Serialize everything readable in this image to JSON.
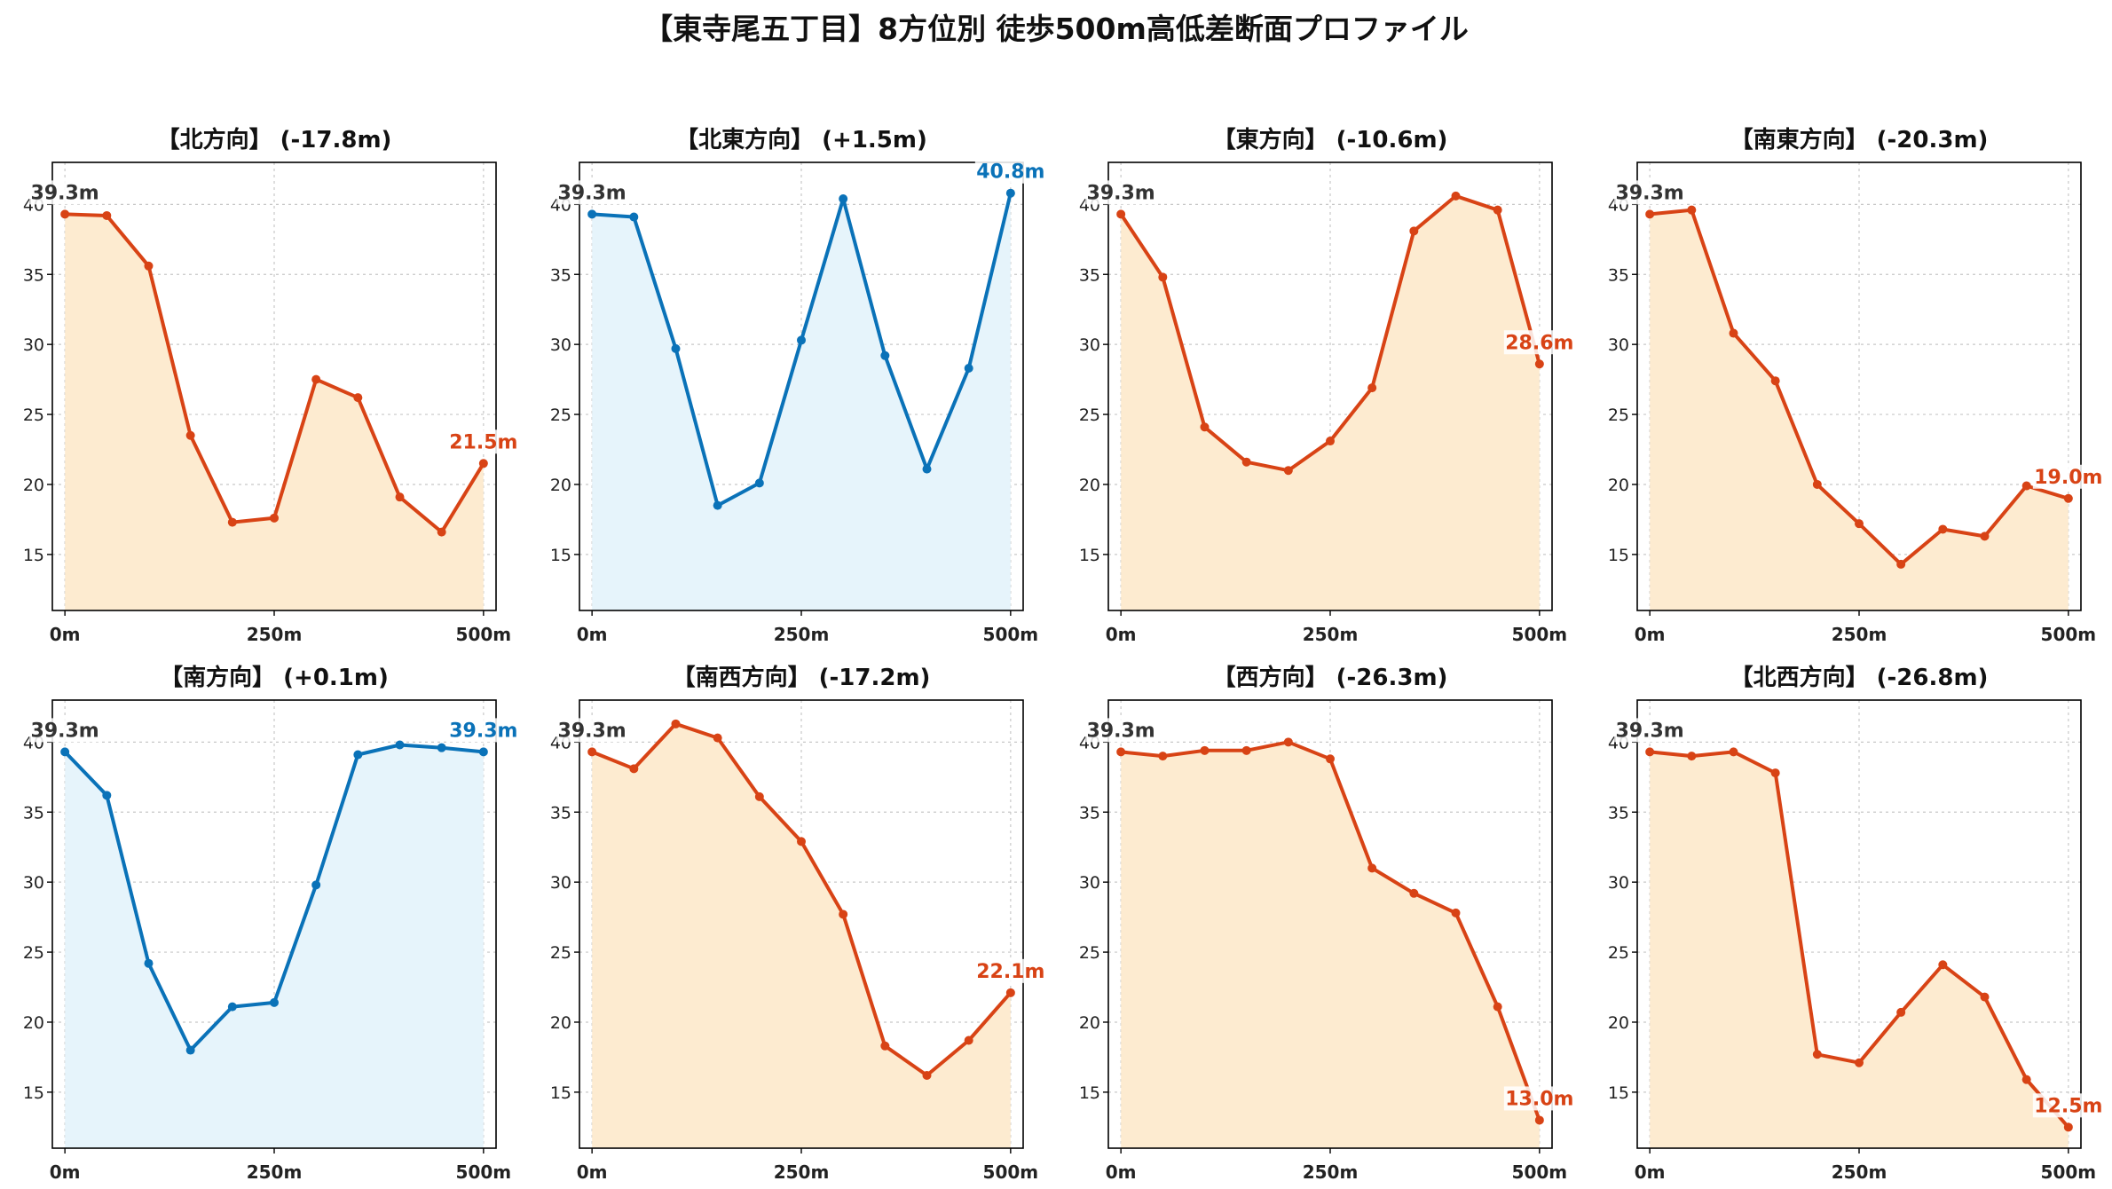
{
  "title": "【東寺尾五丁目】8方位別 徒歩500m高低差断面プロファイル",
  "colors": {
    "down": "#d84315",
    "down_fill": "#fdebd0",
    "up": "#0a72b8",
    "up_fill": "#e6f4fb"
  },
  "chart_data": [
    {
      "type": "area",
      "title": "【北方向】 (-17.8m)",
      "x": [
        0,
        50,
        100,
        150,
        200,
        250,
        300,
        350,
        400,
        450,
        500
      ],
      "values": [
        39.3,
        39.2,
        35.6,
        23.5,
        17.3,
        17.6,
        27.5,
        26.2,
        19.1,
        16.6,
        21.5
      ],
      "start_label": "39.3m",
      "end_label": "21.5m",
      "trend": "down",
      "xticks": [
        "0m",
        "250m",
        "500m"
      ],
      "yticks": [
        15,
        20,
        25,
        30,
        35,
        40
      ],
      "xlim": [
        -15,
        515
      ],
      "ylim": [
        11,
        43
      ],
      "grid": true
    },
    {
      "type": "area",
      "title": "【北東方向】 (+1.5m)",
      "x": [
        0,
        50,
        100,
        150,
        200,
        250,
        300,
        350,
        400,
        450,
        500
      ],
      "values": [
        39.3,
        39.1,
        29.7,
        18.5,
        20.1,
        30.3,
        40.4,
        29.2,
        21.1,
        28.3,
        40.8
      ],
      "start_label": "39.3m",
      "end_label": "40.8m",
      "trend": "up",
      "xticks": [
        "0m",
        "250m",
        "500m"
      ],
      "yticks": [
        15,
        20,
        25,
        30,
        35,
        40
      ],
      "xlim": [
        -15,
        515
      ],
      "ylim": [
        11,
        43
      ],
      "grid": true
    },
    {
      "type": "area",
      "title": "【東方向】 (-10.6m)",
      "x": [
        0,
        50,
        100,
        150,
        200,
        250,
        300,
        350,
        400,
        450,
        500
      ],
      "values": [
        39.3,
        34.8,
        24.1,
        21.6,
        21.0,
        23.1,
        26.9,
        38.1,
        40.6,
        39.6,
        28.6
      ],
      "start_label": "39.3m",
      "end_label": "28.6m",
      "trend": "down",
      "xticks": [
        "0m",
        "250m",
        "500m"
      ],
      "yticks": [
        15,
        20,
        25,
        30,
        35,
        40
      ],
      "xlim": [
        -15,
        515
      ],
      "ylim": [
        11,
        43
      ],
      "grid": true
    },
    {
      "type": "area",
      "title": "【南東方向】 (-20.3m)",
      "x": [
        0,
        50,
        100,
        150,
        200,
        250,
        300,
        350,
        400,
        450,
        500
      ],
      "values": [
        39.3,
        39.6,
        30.8,
        27.4,
        20.0,
        17.2,
        14.3,
        16.8,
        16.3,
        19.9,
        19.0
      ],
      "start_label": "39.3m",
      "end_label": "19.0m",
      "trend": "down",
      "xticks": [
        "0m",
        "250m",
        "500m"
      ],
      "yticks": [
        15,
        20,
        25,
        30,
        35,
        40
      ],
      "xlim": [
        -15,
        515
      ],
      "ylim": [
        11,
        43
      ],
      "grid": true
    },
    {
      "type": "area",
      "title": "【南方向】 (+0.1m)",
      "x": [
        0,
        50,
        100,
        150,
        200,
        250,
        300,
        350,
        400,
        450,
        500
      ],
      "values": [
        39.3,
        36.2,
        24.2,
        18.0,
        21.1,
        21.4,
        29.8,
        39.1,
        39.8,
        39.6,
        39.3
      ],
      "start_label": "39.3m",
      "end_label": "39.3m",
      "trend": "up",
      "xticks": [
        "0m",
        "250m",
        "500m"
      ],
      "yticks": [
        15,
        20,
        25,
        30,
        35,
        40
      ],
      "xlim": [
        -15,
        515
      ],
      "ylim": [
        11,
        43
      ],
      "grid": true
    },
    {
      "type": "area",
      "title": "【南西方向】 (-17.2m)",
      "x": [
        0,
        50,
        100,
        150,
        200,
        250,
        300,
        350,
        400,
        450,
        500
      ],
      "values": [
        39.3,
        38.1,
        41.3,
        40.3,
        36.1,
        32.9,
        27.7,
        18.3,
        16.2,
        18.7,
        22.1
      ],
      "start_label": "39.3m",
      "end_label": "22.1m",
      "trend": "down",
      "xticks": [
        "0m",
        "250m",
        "500m"
      ],
      "yticks": [
        15,
        20,
        25,
        30,
        35,
        40
      ],
      "xlim": [
        -15,
        515
      ],
      "ylim": [
        11,
        43
      ],
      "grid": true
    },
    {
      "type": "area",
      "title": "【西方向】 (-26.3m)",
      "x": [
        0,
        50,
        100,
        150,
        200,
        250,
        300,
        350,
        400,
        450,
        500
      ],
      "values": [
        39.3,
        39.0,
        39.4,
        39.4,
        40.0,
        38.8,
        31.0,
        29.2,
        27.8,
        21.1,
        13.0
      ],
      "start_label": "39.3m",
      "end_label": "13.0m",
      "trend": "down",
      "xticks": [
        "0m",
        "250m",
        "500m"
      ],
      "yticks": [
        15,
        20,
        25,
        30,
        35,
        40
      ],
      "xlim": [
        -15,
        515
      ],
      "ylim": [
        11,
        43
      ],
      "grid": true
    },
    {
      "type": "area",
      "title": "【北西方向】 (-26.8m)",
      "x": [
        0,
        50,
        100,
        150,
        200,
        250,
        300,
        350,
        400,
        450,
        500
      ],
      "values": [
        39.3,
        39.0,
        39.3,
        37.8,
        17.7,
        17.1,
        20.7,
        24.1,
        21.8,
        15.9,
        12.5
      ],
      "start_label": "39.3m",
      "end_label": "12.5m",
      "trend": "down",
      "xticks": [
        "0m",
        "250m",
        "500m"
      ],
      "yticks": [
        15,
        20,
        25,
        30,
        35,
        40
      ],
      "xlim": [
        -15,
        515
      ],
      "ylim": [
        11,
        43
      ],
      "grid": true
    }
  ]
}
